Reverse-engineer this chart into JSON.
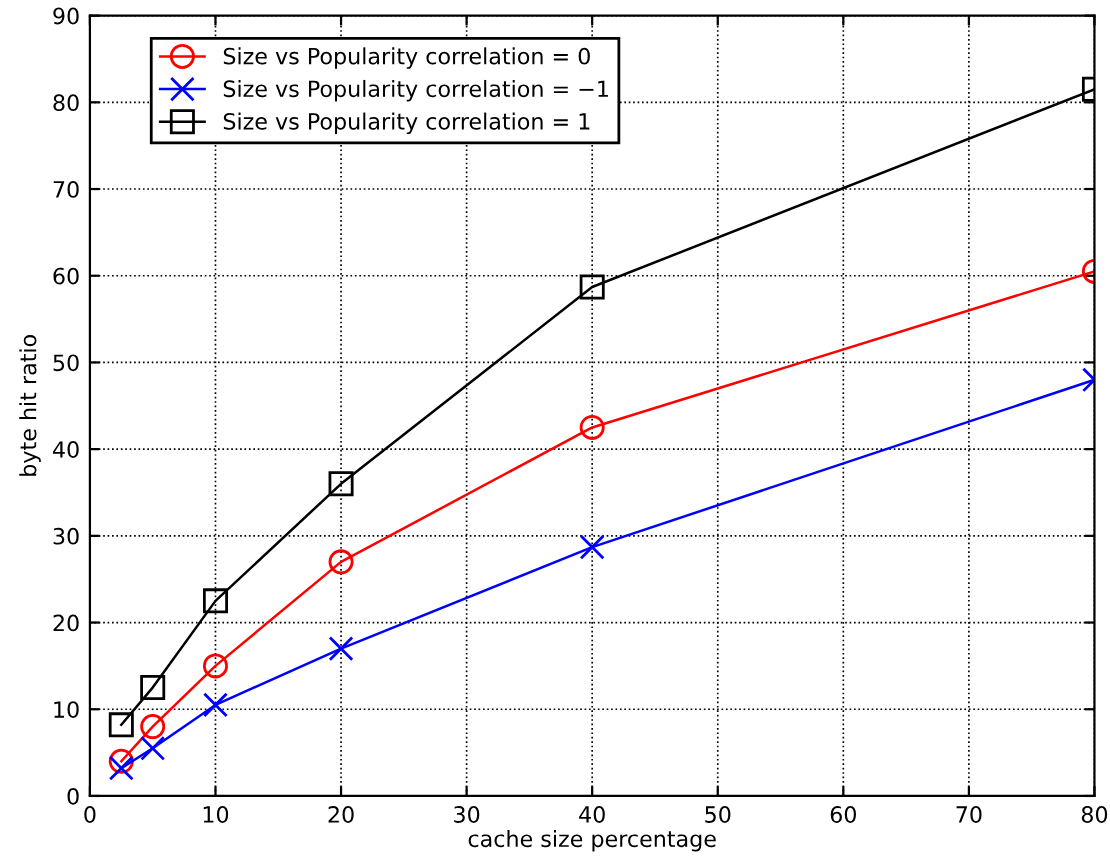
{
  "chart_data": {
    "type": "line",
    "xlabel": "cache size percentage",
    "ylabel": "byte hit ratio",
    "x": [
      2.5,
      5,
      10,
      20,
      40,
      80
    ],
    "series": [
      {
        "name": "Size vs Popularity correlation = 0",
        "color": "#ff0000",
        "marker": "circle",
        "values": [
          4,
          8,
          15,
          27,
          42.5,
          60.5
        ]
      },
      {
        "name": "Size vs Popularity correlation = −1",
        "color": "#0000ff",
        "marker": "cross",
        "values": [
          3.2,
          5.5,
          10.5,
          17,
          28.7,
          48
        ]
      },
      {
        "name": "Size vs Popularity correlation = 1",
        "color": "#000000",
        "marker": "square",
        "values": [
          8.2,
          12.5,
          22.5,
          36,
          58.7,
          81.5
        ]
      }
    ],
    "xlim": [
      0,
      80
    ],
    "xticks": [
      0,
      10,
      20,
      30,
      40,
      50,
      60,
      70,
      80
    ],
    "ylim": [
      0,
      90
    ],
    "yticks": [
      0,
      10,
      20,
      30,
      40,
      50,
      60,
      70,
      80,
      90
    ],
    "grid": true,
    "legend": "top left",
    "line_style": "solid"
  }
}
